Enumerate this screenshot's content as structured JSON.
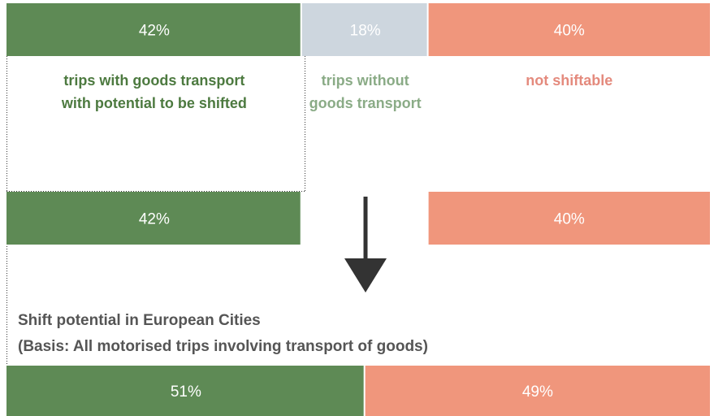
{
  "chart_data": [
    {
      "type": "stacked-bar",
      "series": [
        {
          "name": "trips with goods transport with potential to be shifted",
          "color": "#5e8a55",
          "label_color": "#4d7a40",
          "values": [
            42
          ],
          "value_labels": [
            "42%"
          ]
        },
        {
          "name": "trips without goods transport",
          "color": "#cdd6de",
          "label_color": "#8aab86",
          "values": [
            18
          ],
          "value_labels": [
            "18%"
          ]
        },
        {
          "name": "not shiftable",
          "color": "#f0967c",
          "label_color": "#e48a7d",
          "values": [
            40
          ],
          "value_labels": [
            "40%"
          ]
        }
      ]
    },
    {
      "type": "stacked-bar",
      "series": [
        {
          "color": "#5e8a55",
          "values": [
            42
          ],
          "value_labels": [
            "42%"
          ]
        },
        {
          "values": [
            null
          ]
        },
        {
          "color": "#f0967c",
          "values": [
            40
          ],
          "value_labels": [
            "40%"
          ]
        }
      ]
    },
    {
      "type": "stacked-bar",
      "title": "Shift potential in European Cities",
      "subtitle": "(Basis: All motorised trips involving transport of goods)",
      "series": [
        {
          "color": "#5e8a55",
          "values": [
            51
          ],
          "value_labels": [
            "51%"
          ]
        },
        {
          "color": "#f0967c",
          "values": [
            49
          ],
          "value_labels": [
            "49%"
          ]
        }
      ]
    }
  ]
}
